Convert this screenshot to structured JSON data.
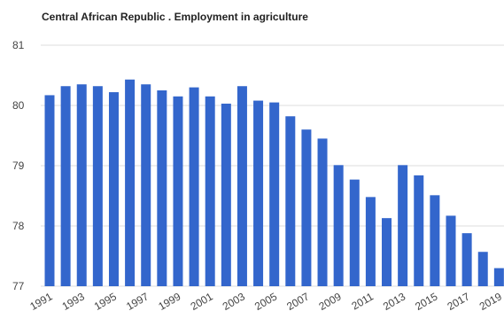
{
  "chart_data": {
    "type": "bar",
    "title": "Central African Republic . Employment in agriculture",
    "xlabel": "",
    "ylabel": "",
    "ylim": [
      77,
      81
    ],
    "yticks": [
      "77",
      "78",
      "79",
      "80",
      "81"
    ],
    "grid": true,
    "legend": "none",
    "bar_color": "#3366cc",
    "categories": [
      "1991",
      "1992",
      "1993",
      "1994",
      "1995",
      "1996",
      "1997",
      "1998",
      "1999",
      "2000",
      "2001",
      "2002",
      "2003",
      "2004",
      "2005",
      "2006",
      "2007",
      "2008",
      "2009",
      "2010",
      "2011",
      "2012",
      "2013",
      "2014",
      "2015",
      "2016",
      "2017",
      "2018",
      "2019"
    ],
    "xtick_labels": [
      "1991",
      "1993",
      "1995",
      "1997",
      "1999",
      "2001",
      "2003",
      "2005",
      "2007",
      "2009",
      "2011",
      "2013",
      "2015",
      "2017",
      "2019"
    ],
    "values": [
      80.17,
      80.32,
      80.35,
      80.32,
      80.22,
      80.43,
      80.35,
      80.25,
      80.15,
      80.3,
      80.15,
      80.03,
      80.32,
      80.08,
      80.05,
      79.82,
      79.6,
      79.45,
      79.01,
      78.77,
      78.48,
      78.13,
      79.01,
      78.84,
      78.51,
      78.17,
      77.88,
      77.57,
      77.3
    ]
  }
}
